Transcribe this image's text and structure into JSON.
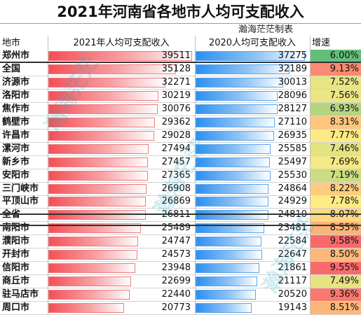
{
  "title": "2021年河南省各地市人均可支配收入",
  "author": "瀚海茫茫制表",
  "watermark": "瀚海茫茫",
  "headers": {
    "city": "地市",
    "income_2021": "2021年人均可支配收入",
    "income_2020": "2020人均可支配收入",
    "growth": "增速"
  },
  "colors": {
    "bar_2021": "#f44f55",
    "bar_2020": "#2d8ff0",
    "growth_high": "#f8696b",
    "growth_mid": "#ffeb84",
    "growth_low": "#63be7b"
  },
  "chart_data": {
    "type": "table",
    "title": "2021年河南省各地市人均可支配收入",
    "columns": [
      "地市",
      "2021年人均可支配收入",
      "2020人均可支配收入",
      "增速"
    ],
    "rows": [
      {
        "city": "郑州市",
        "v2021": "39511",
        "v2020": "37275",
        "growth": "6.00%"
      },
      {
        "city": "全国",
        "v2021": "35128",
        "v2020": "32189",
        "growth": "9.13%"
      },
      {
        "city": "济源市",
        "v2021": "32271",
        "v2020": "30013",
        "growth": "7.52%"
      },
      {
        "city": "洛阳市",
        "v2021": "30219",
        "v2020": "28096",
        "growth": "7.56%"
      },
      {
        "city": "焦作市",
        "v2021": "30076",
        "v2020": "28127",
        "growth": "6.93%"
      },
      {
        "city": "鹤壁市",
        "v2021": "29362",
        "v2020": "27110",
        "growth": "8.31%"
      },
      {
        "city": "许昌市",
        "v2021": "29028",
        "v2020": "26935",
        "growth": "7.77%"
      },
      {
        "city": "漯河市",
        "v2021": "27494",
        "v2020": "25585",
        "growth": "7.46%"
      },
      {
        "city": "新乡市",
        "v2021": "27457",
        "v2020": "25497",
        "growth": "7.69%"
      },
      {
        "city": "安阳市",
        "v2021": "27365",
        "v2020": "25530",
        "growth": "7.19%"
      },
      {
        "city": "三门峡市",
        "v2021": "26908",
        "v2020": "24864",
        "growth": "8.22%"
      },
      {
        "city": "平顶山市",
        "v2021": "26869",
        "v2020": "24929",
        "growth": "7.78%"
      },
      {
        "city": "全省",
        "v2021": "26811",
        "v2020": "24810",
        "growth": "8.07%"
      },
      {
        "city": "南阳市",
        "v2021": "25489",
        "v2020": "23481",
        "growth": "8.55%"
      },
      {
        "city": "濮阳市",
        "v2021": "24747",
        "v2020": "22584",
        "growth": "9.58%"
      },
      {
        "city": "开封市",
        "v2021": "24573",
        "v2020": "22647",
        "growth": "8.50%"
      },
      {
        "city": "信阳市",
        "v2021": "23948",
        "v2020": "21861",
        "growth": "9.55%"
      },
      {
        "city": "商丘市",
        "v2021": "22699",
        "v2020": "21117",
        "growth": "7.49%"
      },
      {
        "city": "驻马店市",
        "v2021": "22440",
        "v2020": "20520",
        "growth": "9.36%"
      },
      {
        "city": "周口市",
        "v2021": "20773",
        "v2020": "19143",
        "growth": "8.51%"
      }
    ]
  }
}
